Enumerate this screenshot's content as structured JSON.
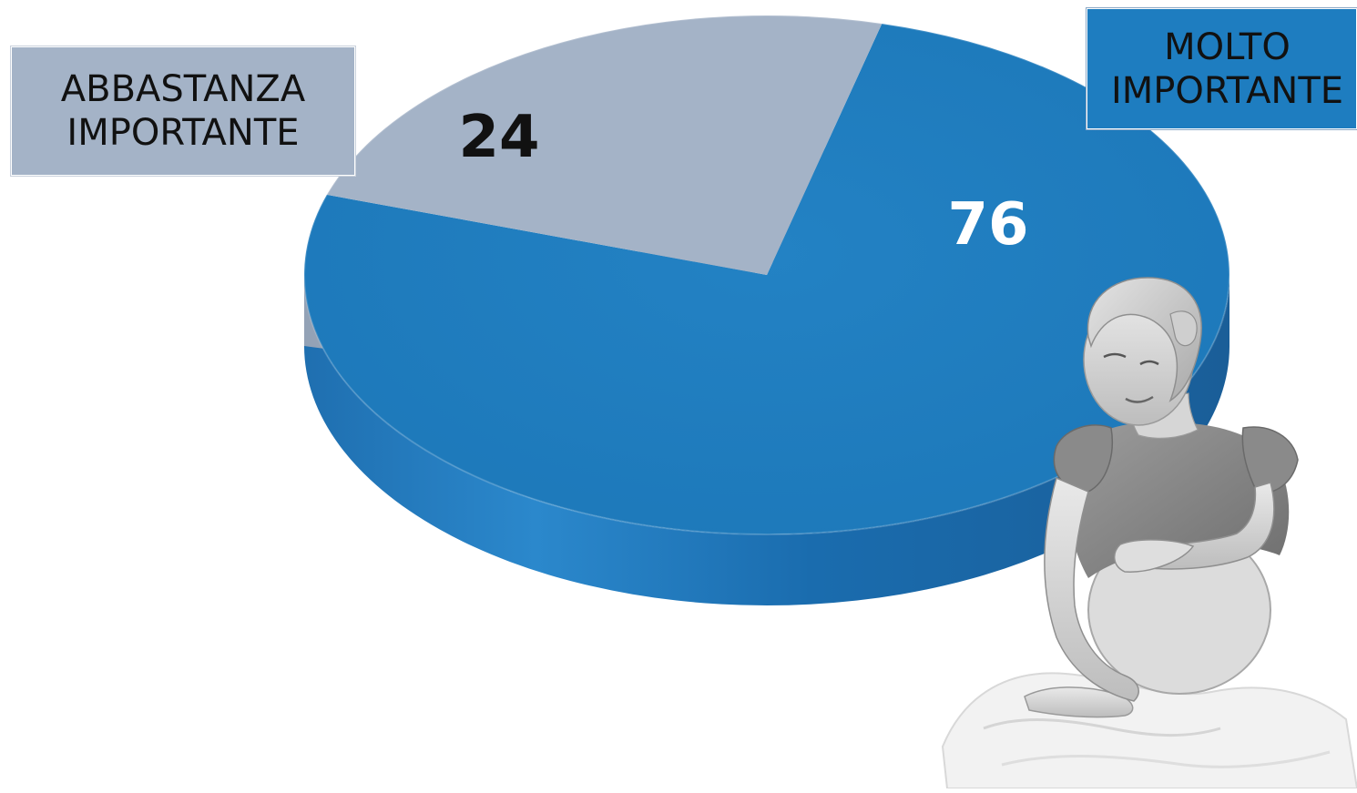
{
  "chart_data": {
    "type": "pie",
    "title": "",
    "slices": [
      {
        "label": "MOLTO IMPORTANTE",
        "value": 76,
        "color": "#1E7DC0"
      },
      {
        "label": "ABBASTANZA IMPORTANTE",
        "value": 24,
        "color": "#A4B3C7"
      }
    ],
    "legend": {
      "placement": "top-left and top-right"
    },
    "style": "3d"
  },
  "legend_labels": {
    "abbastanza": "ABBASTANZA\nIMPORTANTE",
    "molto": "MOLTO\nIMPORTANTE"
  },
  "data_labels": {
    "abbastanza": "24",
    "molto": "76"
  },
  "colors": {
    "molto_fill": "#1E7DC0",
    "molto_side": "#1666A6",
    "abbastanza_fill": "#A4B3C7",
    "abbastanza_side": "#8E9DB2",
    "molto_legend_bg": "#1E7DC0",
    "abbastanza_legend_bg": "#A4B3C7"
  },
  "image": {
    "subject": "pregnant-woman-photo"
  }
}
